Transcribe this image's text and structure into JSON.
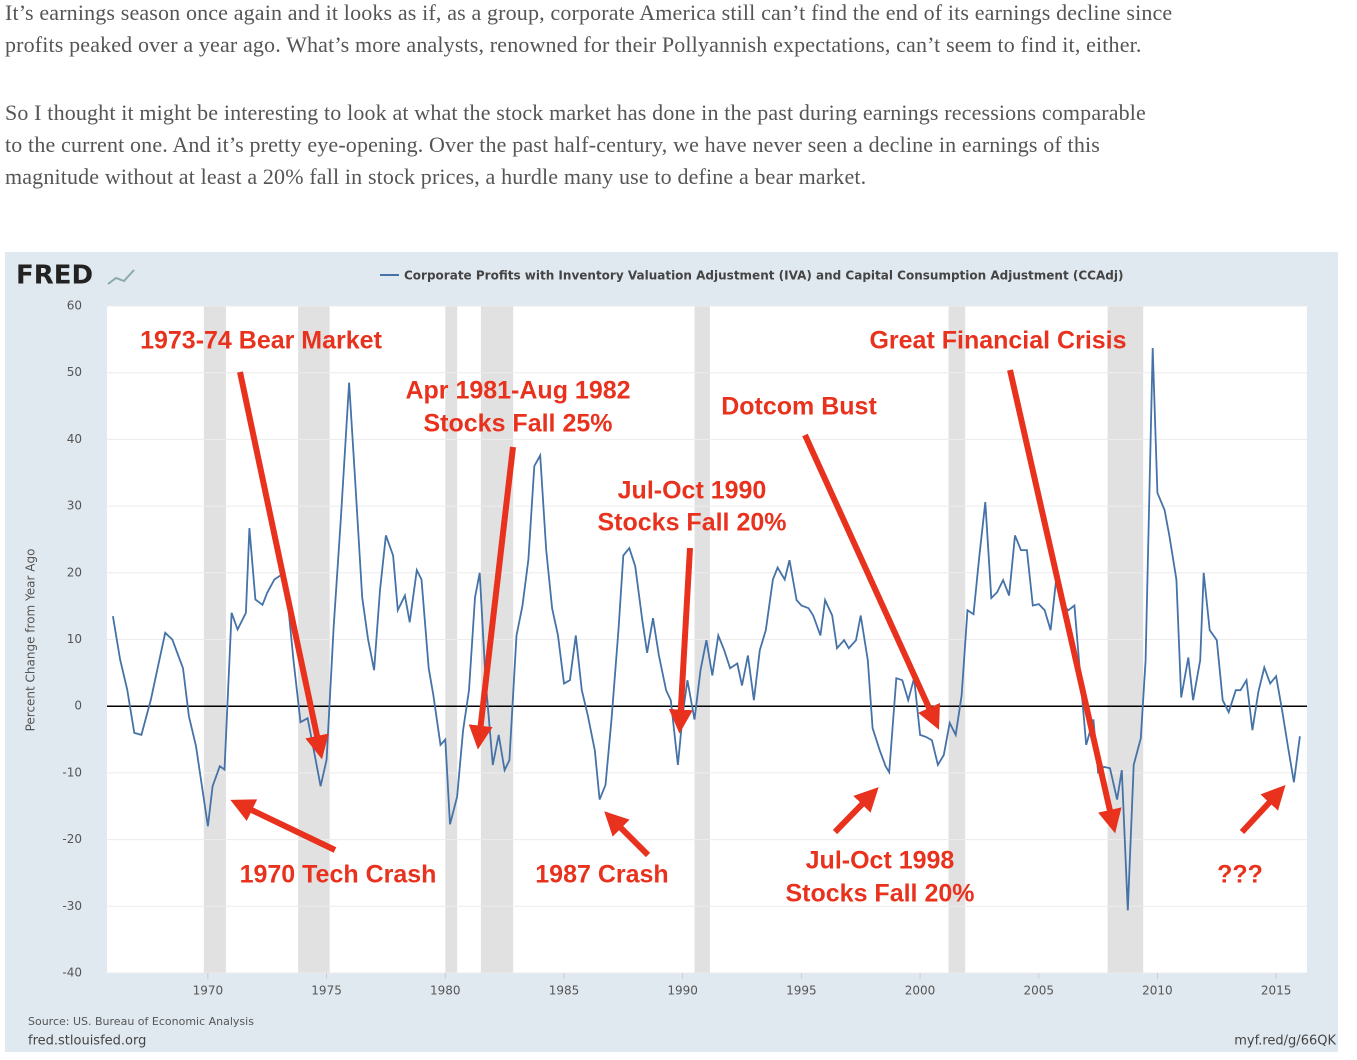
{
  "article": {
    "paragraphs": [
      [
        "It’s earnings season once again and it looks as if, as a group, corporate America still can’t find the end of its earnings decline since",
        "profits peaked over a year ago. What’s more analysts, renowned for their Pollyannish expectations, can’t seem to find it, either."
      ],
      [
        "So I thought it might be interesting to look at what the stock market has done in the past during earnings recessions comparable",
        "to the current one. And it’s pretty eye-opening. Over the past half-century, we have never seen a decline in earnings of this",
        "magnitude without at least a 20% fall in stock prices, a hurdle many use to define a bear market."
      ]
    ]
  },
  "chart_data": {
    "type": "line",
    "logo": "FRED",
    "ylabel": "Percent Change from Year Ago",
    "source": "Source: US. Bureau of Economic Analysis",
    "site": "fred.stlouisfed.org",
    "link": "myf.red/g/66QK",
    "xlim": [
      1965.75,
      2016.3
    ],
    "xticks": [
      1970,
      1975,
      1980,
      1985,
      1990,
      1995,
      2000,
      2005,
      2010,
      2015
    ],
    "ylim": [
      -40,
      60
    ],
    "yticks": [
      -40,
      -30,
      -20,
      -10,
      0,
      10,
      20,
      30,
      40,
      50,
      60
    ],
    "grid": true,
    "recessions": [
      [
        1969.83,
        1970.76
      ],
      [
        1973.8,
        1975.13
      ],
      [
        1980.0,
        1980.5
      ],
      [
        1981.5,
        1982.86
      ],
      [
        1990.5,
        1991.15
      ],
      [
        2001.2,
        2001.9
      ],
      [
        2007.9,
        2009.4
      ]
    ],
    "annotations": [
      "1973-74 Bear Market",
      "Apr 1981-Aug 1982",
      "Stocks Fall 25%",
      "Dotcom Bust",
      "Great Financial Crisis",
      "Jul-Oct 1990",
      "Stocks Fall 20%",
      "1970 Tech Crash",
      "1987 Crash",
      "Jul-Oct 1998",
      "Stocks Fall 20%",
      "???"
    ],
    "x": [
      1966.0,
      1966.3,
      1966.6,
      1966.9,
      1967.2,
      1967.6,
      1968.2,
      1968.5,
      1968.95,
      1969.2,
      1969.5,
      1970.0,
      1970.2,
      1970.5,
      1970.7,
      1971.0,
      1971.25,
      1971.6,
      1971.75,
      1972.0,
      1972.3,
      1972.5,
      1972.8,
      1973.1,
      1973.4,
      1973.6,
      1973.9,
      1974.2,
      1974.5,
      1974.75,
      1975.0,
      1975.3,
      1975.6,
      1975.95,
      1976.2,
      1976.5,
      1976.75,
      1977.0,
      1977.25,
      1977.5,
      1977.8,
      1978.0,
      1978.3,
      1978.5,
      1978.8,
      1979.0,
      1979.3,
      1979.5,
      1979.8,
      1980.0,
      1980.2,
      1980.5,
      1980.75,
      1981.0,
      1981.25,
      1981.45,
      1981.7,
      1982.0,
      1982.25,
      1982.5,
      1982.7,
      1983.0,
      1983.25,
      1983.5,
      1983.75,
      1984.0,
      1984.25,
      1984.5,
      1984.75,
      1985.0,
      1985.25,
      1985.5,
      1985.75,
      1986.0,
      1986.3,
      1986.5,
      1986.75,
      1987.0,
      1987.3,
      1987.5,
      1987.75,
      1988.0,
      1988.3,
      1988.5,
      1988.75,
      1989.0,
      1989.3,
      1989.5,
      1989.8,
      1990.0,
      1990.2,
      1990.5,
      1990.75,
      1991.0,
      1991.25,
      1991.5,
      1991.75,
      1992.0,
      1992.3,
      1992.5,
      1992.75,
      1993.0,
      1993.25,
      1993.5,
      1993.8,
      1994.0,
      1994.3,
      1994.5,
      1994.8,
      1995.0,
      1995.3,
      1995.5,
      1995.8,
      1996.0,
      1996.3,
      1996.5,
      1996.8,
      1997.0,
      1997.3,
      1997.5,
      1997.8,
      1998.0,
      1998.3,
      1998.55,
      1998.7,
      1999.0,
      1999.25,
      1999.5,
      1999.75,
      2000.0,
      2000.25,
      2000.5,
      2000.75,
      2001.0,
      2001.25,
      2001.5,
      2001.75,
      2002.0,
      2002.25,
      2002.5,
      2002.75,
      2003.0,
      2003.25,
      2003.5,
      2003.75,
      2004.0,
      2004.25,
      2004.5,
      2004.75,
      2005.0,
      2005.25,
      2005.5,
      2005.75,
      2006.0,
      2006.25,
      2006.5,
      2006.8,
      2007.0,
      2007.3,
      2007.5,
      2007.75,
      2008.0,
      2008.3,
      2008.5,
      2008.75,
      2009.0,
      2009.3,
      2009.5,
      2009.8,
      2010.0,
      2010.3,
      2010.5,
      2010.8,
      2011.0,
      2011.3,
      2011.5,
      2011.8,
      2011.95,
      2012.2,
      2012.5,
      2012.75,
      2013.0,
      2013.3,
      2013.5,
      2013.75,
      2014.0,
      2014.25,
      2014.5,
      2014.75,
      2015.0,
      2015.25,
      2015.5,
      2015.75,
      2016.0
    ],
    "series": [
      {
        "name": "Corporate Profits with Inventory Valuation Adjustment (IVA) and Capital Consumption Adjustment (CCAdj)",
        "color": "#4572a7",
        "values": [
          13.5,
          7,
          2.5,
          -4,
          -4.3,
          1,
          11,
          10,
          5.7,
          -1.5,
          -6,
          -18,
          -12,
          -9,
          -9.5,
          14,
          11.5,
          14,
          26.7,
          16,
          15.2,
          17,
          19,
          19.7,
          14.4,
          7,
          -2.4,
          -1.8,
          -7.3,
          -12,
          -8,
          12,
          28,
          48.5,
          34,
          16.3,
          10,
          5.4,
          17.4,
          25.6,
          22.6,
          14.4,
          16.6,
          12.6,
          20.4,
          19,
          5.7,
          1.6,
          -5.8,
          -5,
          -17.7,
          -13.6,
          -3.6,
          2.4,
          16.3,
          20,
          3.9,
          -8.8,
          -4.3,
          -9.6,
          -8.1,
          10.6,
          15,
          22,
          36,
          37.6,
          23.4,
          14.7,
          10.6,
          3.4,
          3.9,
          10.6,
          2.4,
          -1.3,
          -6.6,
          -14,
          -11.8,
          -2,
          11.7,
          22.6,
          23.7,
          21,
          12.9,
          8,
          13.2,
          7.6,
          2.4,
          0.9,
          -8.8,
          -1.3,
          3.9,
          -2,
          5.4,
          9.9,
          4.6,
          10.6,
          8.4,
          5.7,
          6.4,
          3.1,
          7.6,
          0.9,
          8.4,
          11.4,
          19,
          20.8,
          19,
          21.9,
          15.9,
          15.1,
          14.7,
          13.6,
          10.6,
          15.9,
          13.6,
          8.7,
          9.9,
          8.7,
          9.9,
          13.6,
          6.9,
          -3.3,
          -6.6,
          -9,
          -9.9,
          4.2,
          3.9,
          0.9,
          4.2,
          -4.3,
          -4.6,
          -5.1,
          -8.8,
          -7.3,
          -2.5,
          -4.3,
          1.6,
          14.4,
          13.8,
          22.6,
          30.6,
          16.2,
          17.1,
          18.9,
          16.6,
          25.6,
          23.4,
          23.4,
          15.1,
          15.3,
          14.4,
          11.4,
          19.6,
          15.1,
          14.4,
          15.1,
          2.4,
          -5.8,
          -2,
          -9.9,
          -9.1,
          -9.3,
          -14,
          -9.6,
          -30.6,
          -8.8,
          -4.8,
          6.9,
          53.7,
          32,
          29.4,
          25.6,
          19,
          1.3,
          7.3,
          0.9,
          6.9,
          20,
          11.4,
          9.9,
          0.9,
          -0.9,
          2.4,
          2.4,
          3.9,
          -3.6,
          2.1,
          5.8,
          3.4,
          4.5,
          -0.6,
          -6.1,
          -11.4,
          -4.5
        ]
      }
    ]
  }
}
